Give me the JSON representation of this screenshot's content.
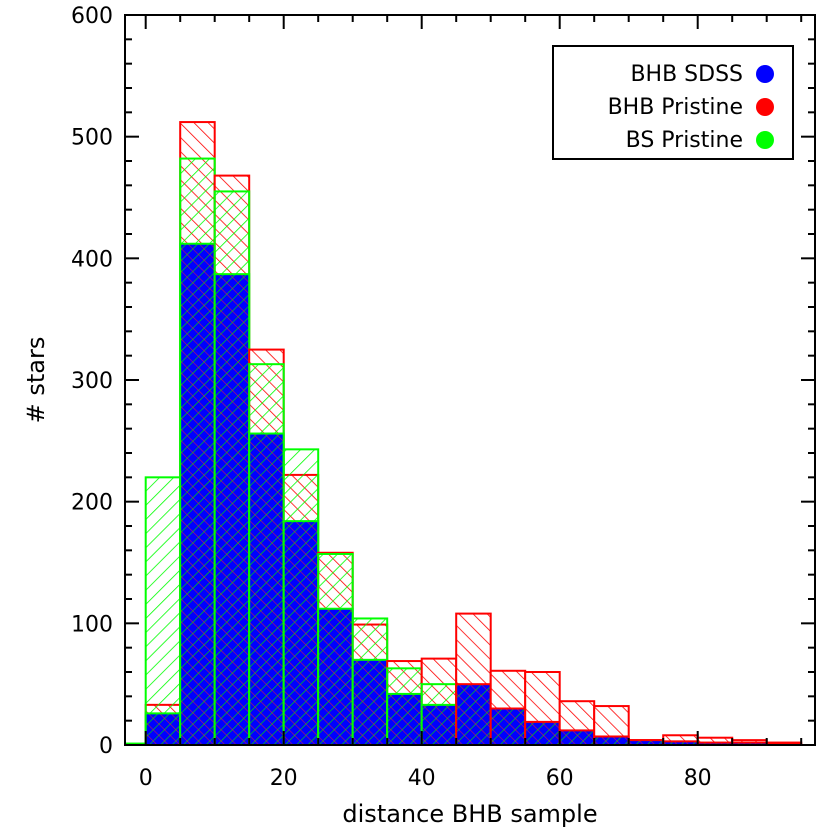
{
  "chart_data": {
    "type": "bar",
    "title": "",
    "xlabel": "distance BHB sample",
    "ylabel": "# stars",
    "xlim": [
      -3,
      97
    ],
    "ylim": [
      0,
      600
    ],
    "bin_width": 5,
    "x_ticks": [
      0,
      20,
      40,
      60,
      80
    ],
    "y_ticks": [
      0,
      100,
      200,
      300,
      400,
      500,
      600
    ],
    "bin_left_edges": [
      0,
      5,
      10,
      15,
      20,
      25,
      30,
      35,
      40,
      45,
      50,
      55,
      60,
      65,
      70,
      75,
      80,
      85,
      90,
      95
    ],
    "legend_position": "top-right",
    "series": [
      {
        "name": "BHB SDSS",
        "color": "#0000ff",
        "fill": "solid",
        "values": [
          26,
          412,
          387,
          256,
          184,
          112,
          70,
          42,
          33,
          50,
          30,
          19,
          12,
          7,
          4,
          3,
          2,
          2,
          1,
          0
        ]
      },
      {
        "name": "BHB Pristine",
        "color": "#ff0000",
        "fill": "hatch-right",
        "values": [
          33,
          512,
          468,
          325,
          222,
          158,
          99,
          69,
          71,
          108,
          61,
          60,
          36,
          32,
          4,
          8,
          6,
          4,
          2,
          0
        ]
      },
      {
        "name": "BS Pristine",
        "color": "#00ff00",
        "fill": "hatch-left",
        "values": [
          220,
          482,
          455,
          313,
          243,
          157,
          104,
          63,
          50,
          35,
          12,
          12,
          2,
          0,
          0,
          0,
          0,
          0,
          0,
          0
        ]
      }
    ]
  }
}
